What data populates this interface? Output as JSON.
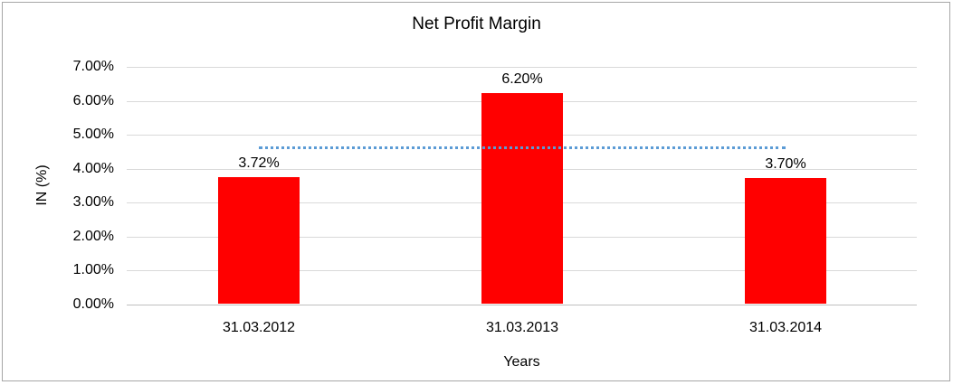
{
  "chart_data": {
    "type": "bar",
    "title": "Net Profit Margin",
    "xlabel": "Years",
    "ylabel": "IN (%)",
    "categories": [
      "31.03.2012",
      "31.03.2013",
      "31.03.2014"
    ],
    "series": [
      {
        "name": "Net Profit Margin",
        "color": "#ff0000",
        "values": [
          3.72,
          6.2,
          3.7
        ]
      }
    ],
    "data_labels": [
      "3.72%",
      "6.20%",
      "3.70%"
    ],
    "y_ticks": [
      "7.00%",
      "6.00%",
      "5.00%",
      "4.00%",
      "3.00%",
      "2.00%",
      "1.00%",
      "0.00%"
    ],
    "ylim": [
      0,
      7
    ],
    "grid": true,
    "legend": "none",
    "gridline_color": "#d9d9d9",
    "axis_line_color": "#bfbfbf",
    "trendline": {
      "type": "linear",
      "style": "dotted",
      "color": "#5b9bd5",
      "value": 4.6,
      "span": "first-to-last-category-center"
    }
  }
}
